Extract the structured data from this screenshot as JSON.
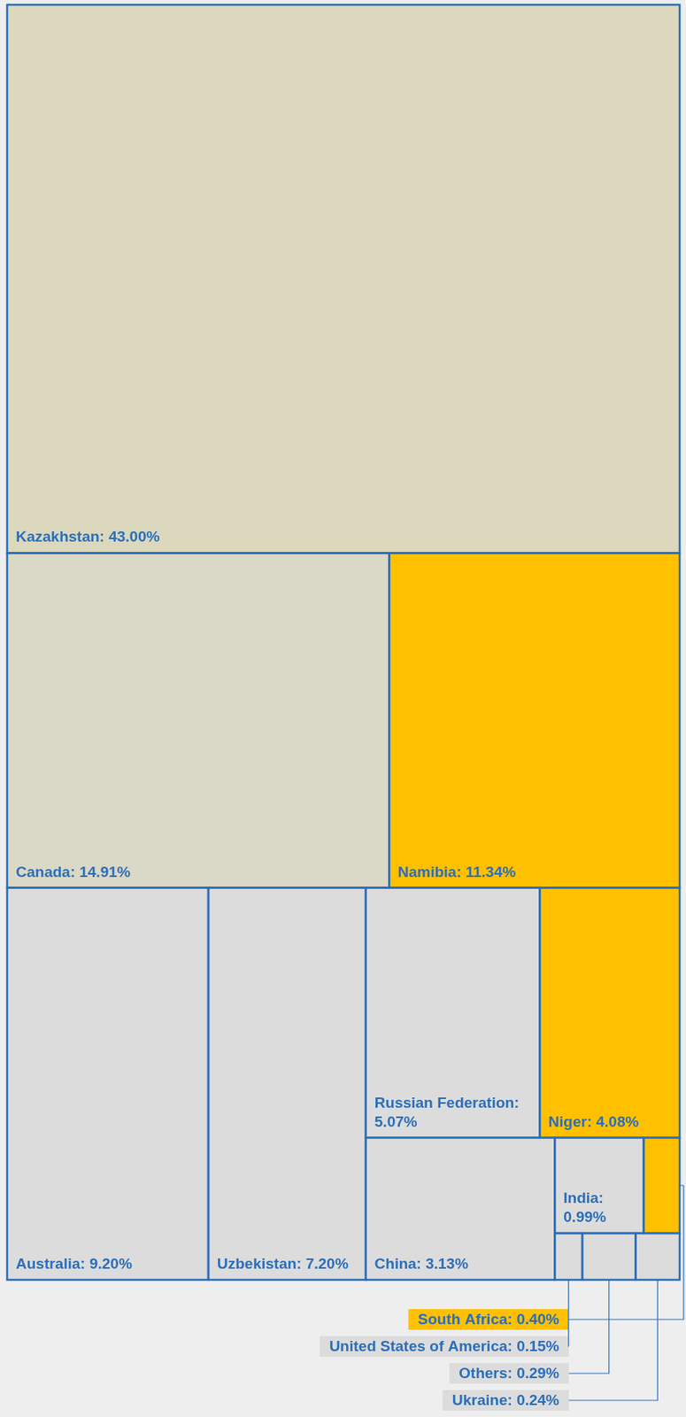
{
  "chart_data": {
    "type": "treemap",
    "values": [
      43,
      14.91,
      11.34,
      9.2,
      7.2,
      5.07,
      4.08,
      3.13,
      0.99,
      0.4,
      0.15,
      0.29,
      0.24
    ],
    "value_labels": [
      "Kazakhstan: 43.00%",
      "Canada: 14.91%",
      "Namibia: 11.34%",
      "Australia: 9.20%",
      "Uzbekistan: 7.20%",
      "Russian Federation: 5.07%",
      "Niger: 4.08%",
      "China: 3.13%",
      "India: 0.99%",
      "South Africa: 0.40%",
      "United States of America: 0.15%",
      "Others: 0.29%",
      "Ukraine: 0.24%"
    ],
    "colors": [
      "#dbd8bd",
      "#dad8c6",
      "#ffc000",
      "#dcdcdc",
      "#dcdcdc",
      "#dcdcdc",
      "#ffc000",
      "#dcdcdc",
      "#dcdcdc",
      "#ffc000",
      "#dcdcdc",
      "#dcdcdc",
      "#dcdcdc"
    ],
    "data_labels": true,
    "tick_labels": false
  }
}
